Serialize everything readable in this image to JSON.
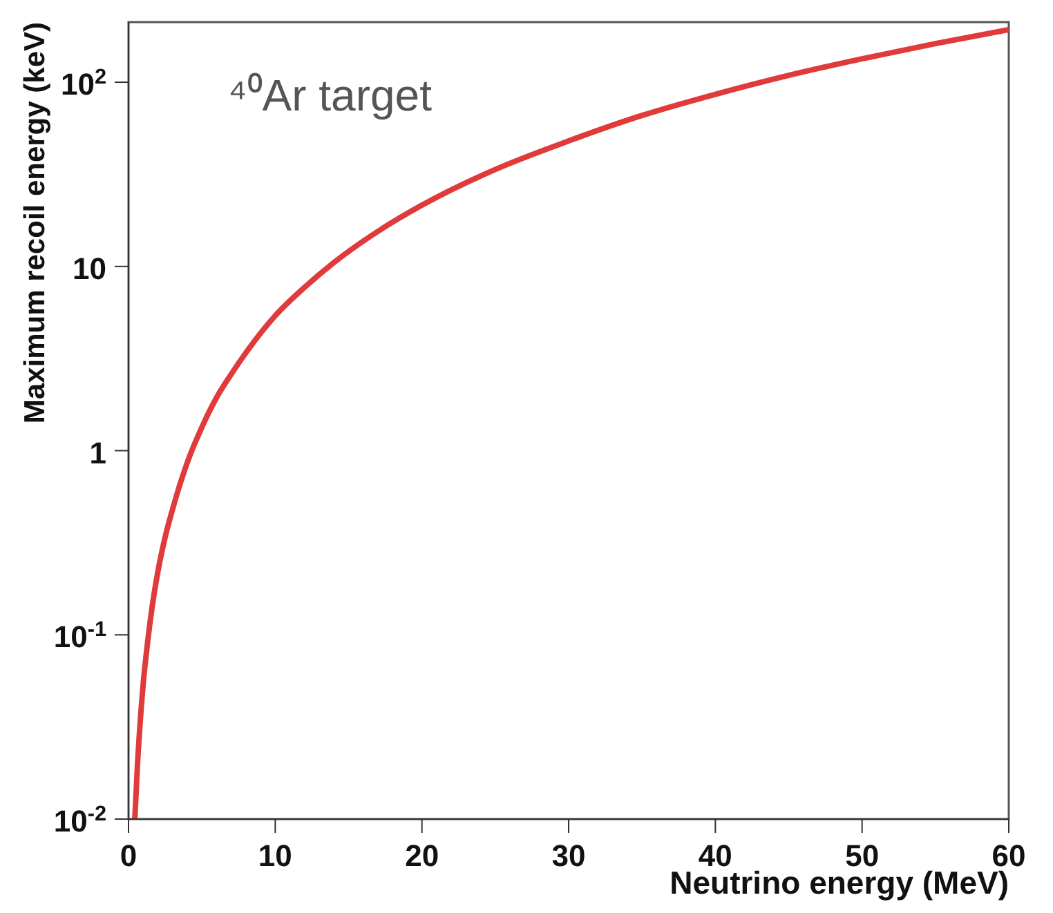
{
  "chart_data": {
    "type": "line",
    "xlabel": "Neutrino energy (MeV)",
    "ylabel": "Maximum recoil energy (keV)",
    "annotations": [
      "⁴⁰Ar target"
    ],
    "x": [
      0.43,
      0.6,
      0.8,
      1,
      1.3,
      1.6,
      2,
      2.5,
      3,
      4,
      5,
      6,
      7,
      8,
      10,
      12,
      14,
      17,
      20,
      25,
      30,
      35,
      40,
      45,
      50,
      55,
      60
    ],
    "series": [
      {
        "color": "#e03a3a",
        "values": [
          0.01,
          0.019,
          0.034,
          0.054,
          0.091,
          0.14,
          0.22,
          0.34,
          0.48,
          0.86,
          1.34,
          1.94,
          2.6,
          3.4,
          5.4,
          7.7,
          10.5,
          15.5,
          21.5,
          33.6,
          48,
          66,
          86,
          109,
          134,
          162,
          193
        ]
      }
    ],
    "log": "y",
    "xlim": [
      0,
      60
    ],
    "ylim": [
      0.01,
      212
    ],
    "xticks": [
      0,
      10,
      20,
      30,
      40,
      50,
      60
    ],
    "yticks": [
      {
        "value": 0.01,
        "label": "10$^{-2}$"
      },
      {
        "value": 0.1,
        "label": "10$^{-1}$"
      },
      1,
      10,
      {
        "value": 100,
        "label": "10$^{2}$"
      }
    ],
    "grid": false,
    "legend": false,
    "marker": "none",
    "line_style": "solid"
  }
}
